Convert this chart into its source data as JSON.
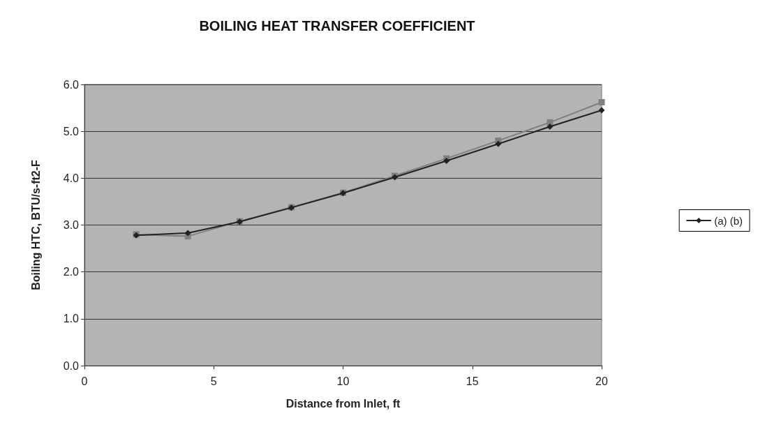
{
  "chart_data": {
    "type": "line",
    "title": "BOILING HEAT TRANSFER COEFFICIENT",
    "xlabel": "Distance from Inlet, ft",
    "ylabel": "Boiling HTC, BTU/s-ft2-F",
    "x": [
      2,
      4,
      6,
      8,
      10,
      12,
      14,
      16,
      18,
      20
    ],
    "series": [
      {
        "name": "(a) (b)",
        "color": "#222222",
        "values": [
          2.78,
          2.83,
          3.07,
          3.37,
          3.68,
          4.02,
          4.37,
          4.73,
          5.1,
          5.45
        ]
      },
      {
        "color": "#808080",
        "marker": "square",
        "values": [
          2.8,
          2.76,
          3.08,
          3.38,
          3.69,
          4.05,
          4.42,
          4.8,
          5.19,
          5.62
        ]
      }
    ],
    "xlim": [
      0,
      20
    ],
    "xticks": [
      0,
      5,
      10,
      15,
      20
    ],
    "ylim": [
      0,
      6
    ],
    "yticks": [
      {
        "value": 0,
        "label": "0.0"
      },
      {
        "value": 1,
        "label": "1.0"
      },
      {
        "value": 2,
        "label": "2.0"
      },
      {
        "value": 3,
        "label": "3.0"
      },
      {
        "value": 4,
        "label": "4.0"
      },
      {
        "value": 5,
        "label": "5.0"
      },
      {
        "value": 6,
        "label": "6.0"
      }
    ],
    "grid": "y",
    "legend": "right",
    "marker": "diamond",
    "line_style": "solid"
  }
}
